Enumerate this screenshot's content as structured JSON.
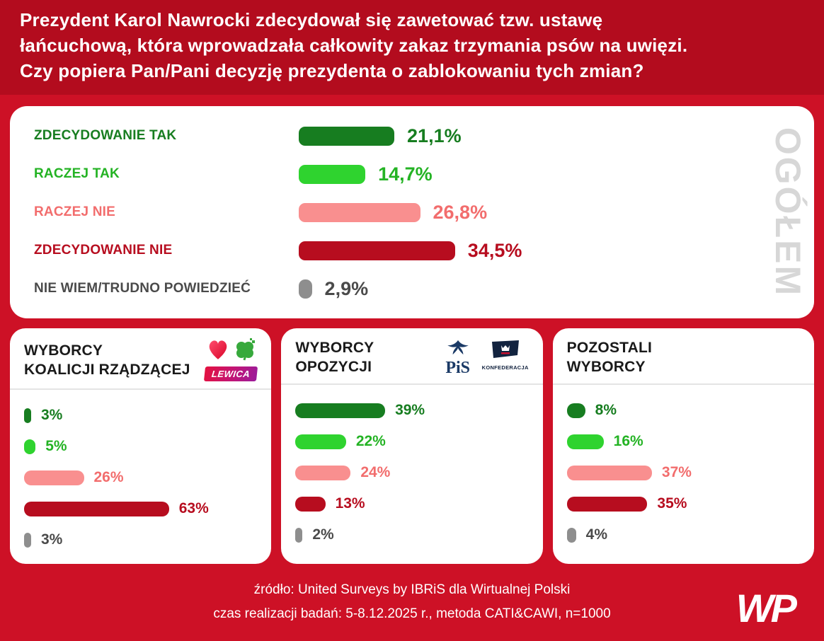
{
  "header": {
    "lines": [
      "Prezydent Karol Nawrocki zdecydował się zawetować tzw. ustawę",
      "łańcuchową, która wprowadzała całkowity zakaz trzymania psów na uwięzi.",
      "Czy popiera Pan/Pani decyzję prezydenta o zablokowaniu tych zmian?"
    ]
  },
  "watermark": "OGÓŁEM",
  "chart_data": {
    "type": "bar",
    "unit": "%",
    "categories": [
      "ZDECYDOWANIE TAK",
      "RACZEJ TAK",
      "RACZEJ NIE",
      "ZDECYDOWANIE NIE",
      "NIE WIEM/TRUDNO POWIEDZIEĆ"
    ],
    "category_colors": [
      "#177d20",
      "#2fd32f",
      "#f98f8f",
      "#b70d1f",
      "#8e8e8e"
    ],
    "series": [
      {
        "name": "OGÓŁEM",
        "values": [
          21.1,
          14.7,
          26.8,
          34.5,
          2.9
        ],
        "display": [
          "21,1%",
          "14,7%",
          "26,8%",
          "34,5%",
          "2,9%"
        ]
      },
      {
        "name": "WYBORCY KOALICJI RZĄDZĄCEJ",
        "values": [
          3,
          5,
          26,
          63,
          3
        ],
        "display": [
          "3%",
          "5%",
          "26%",
          "63%",
          "3%"
        ]
      },
      {
        "name": "WYBORCY OPOZYCJI",
        "values": [
          39,
          22,
          24,
          13,
          2
        ],
        "display": [
          "39%",
          "22%",
          "24%",
          "13%",
          "2%"
        ]
      },
      {
        "name": "POZOSTALI WYBORCY",
        "values": [
          8,
          16,
          37,
          35,
          4
        ],
        "display": [
          "8%",
          "16%",
          "37%",
          "35%",
          "4%"
        ]
      }
    ],
    "legend_position": "none",
    "grid": false
  },
  "cards": [
    {
      "title_lines": [
        "WYBORCY",
        "KOALICJI RZĄDZĄCEJ"
      ]
    },
    {
      "title_lines": [
        "WYBORCY",
        "OPOZYCJI"
      ]
    },
    {
      "title_lines": [
        "POZOSTALI",
        "WYBORCY"
      ]
    }
  ],
  "logos": {
    "lewica": "LEWICA",
    "pis": "PiS",
    "konfederacja": "KONFEDERACJA"
  },
  "footer": {
    "source": "źródło: United Surveys by IBRiS dla Wirtualnej Polski",
    "methodology": "czas realizacji badań: 5-8.12.2025 r., metoda CATI&CAWI, n=1000",
    "brand": "WP"
  },
  "colors": {
    "header_bg": "#b30c1e",
    "page_bg": "#cd1126",
    "card_bg": "#ffffff",
    "dark_green": "#177d20",
    "light_green": "#2fd32f",
    "salmon": "#f98f8f",
    "dark_red": "#b70d1f",
    "gray": "#8e8e8e",
    "watermark_gray": "#d7d7d7"
  }
}
